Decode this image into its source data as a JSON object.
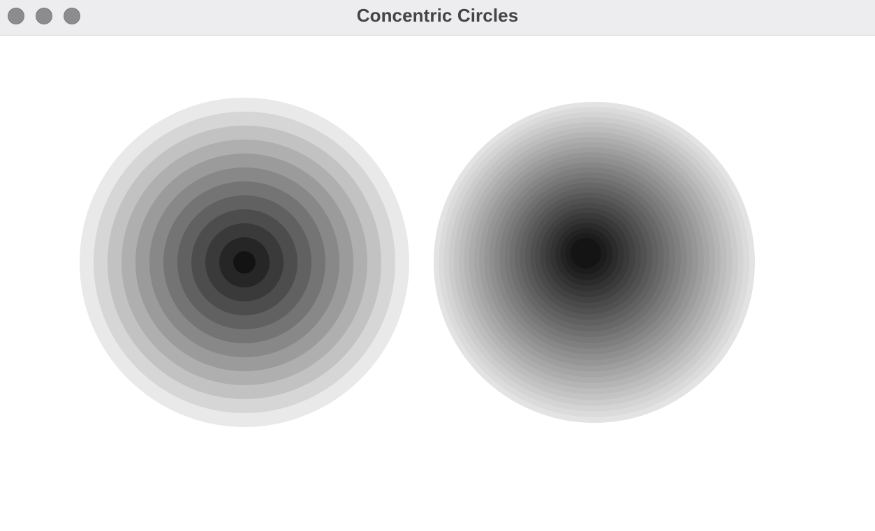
{
  "window": {
    "title": "Concentric Circles",
    "title_color": "#444446",
    "titlebar_color": "#ededef",
    "background": "#ffffff",
    "buttons": [
      {
        "name": "close",
        "color": "#8c8c8e"
      },
      {
        "name": "minimize",
        "color": "#8c8c8e"
      },
      {
        "name": "maximize",
        "color": "#8c8c8e"
      }
    ]
  },
  "drawings": [
    {
      "name": "left-circle-group",
      "ring_count": 12,
      "outer_shade": "#e9e9e9",
      "inner_shade": "#131313"
    },
    {
      "name": "right-circle-group",
      "ring_count": 28,
      "outer_shade": "#e3e3e3",
      "inner_shade": "#141414"
    }
  ]
}
